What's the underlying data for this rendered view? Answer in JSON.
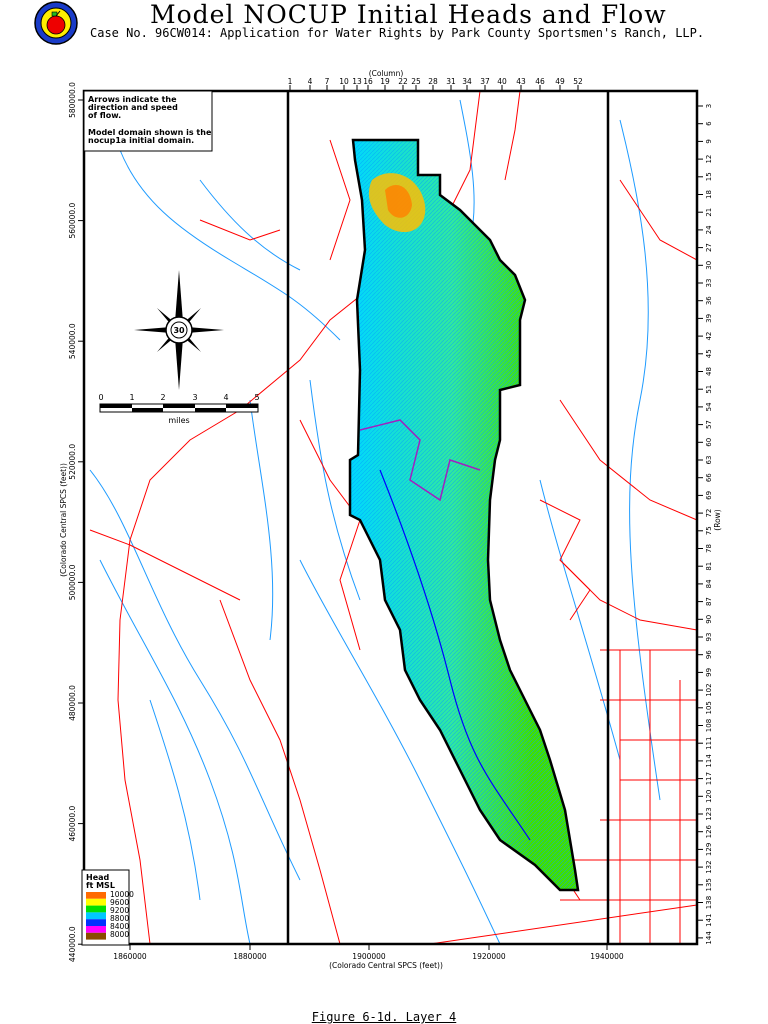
{
  "header": {
    "title": "Model NOCUP Initial Heads and Flow",
    "subtitle": "Case No. 96CW014: Application for Water Rights by Park County Sportsmen's Ranch, LLP.",
    "logo_icon": "apple-seal-logo"
  },
  "map": {
    "note_lines": [
      "Arrows indicate the",
      "direction and speed",
      "of flow.",
      "",
      "Model domain shown is the",
      "nocup1a initial domain."
    ],
    "column_axis": {
      "title": "(Column)",
      "ticks": [
        "1",
        "4",
        "7",
        "10",
        "13",
        "16",
        "19",
        "22",
        "25",
        "28",
        "31",
        "34",
        "37",
        "40",
        "43",
        "46",
        "49",
        "52"
      ]
    },
    "row_axis": {
      "title": "(Row)",
      "ticks": [
        "3",
        "6",
        "9",
        "12",
        "15",
        "18",
        "21",
        "24",
        "27",
        "30",
        "33",
        "36",
        "39",
        "42",
        "45",
        "48",
        "51",
        "54",
        "57",
        "60",
        "63",
        "66",
        "69",
        "72",
        "75",
        "78",
        "81",
        "84",
        "87",
        "90",
        "93",
        "96",
        "99",
        "102",
        "105",
        "108",
        "111",
        "114",
        "117",
        "120",
        "123",
        "126",
        "129",
        "132",
        "135",
        "138",
        "141",
        "144"
      ]
    },
    "x_axis": {
      "title": "(Colorado Central SPCS (feet))",
      "ticks": [
        "1860000",
        "1880000",
        "1900000",
        "1920000",
        "1940000"
      ]
    },
    "y_axis": {
      "title": "(Colorado Central SPCS (feet))",
      "ticks": [
        "580000.0",
        "560000.0",
        "540000.0",
        "520000.0",
        "500000.0",
        "480000.0",
        "460000.0",
        "440000.0"
      ]
    },
    "scale_bar": {
      "labels": [
        "0",
        "1",
        "2",
        "3",
        "4",
        "5"
      ],
      "unit": "miles"
    },
    "compass_icon": "compass-rose",
    "legend": {
      "title": "Head",
      "unit": "ft MSL",
      "values": [
        "10000",
        "9600",
        "9200",
        "8800",
        "8400",
        "8000"
      ],
      "colors": [
        "#ff6a00",
        "#ffff00",
        "#00e000",
        "#00c8ff",
        "#0030ff",
        "#ff00ff",
        "#8a4a00"
      ]
    },
    "colors": {
      "roads": "#ff0000",
      "streams": "#1e9bff",
      "domain_boundary": "#000000",
      "labels_blue": "#0000ff"
    }
  },
  "caption": "Figure 6-1d.  Layer 4"
}
